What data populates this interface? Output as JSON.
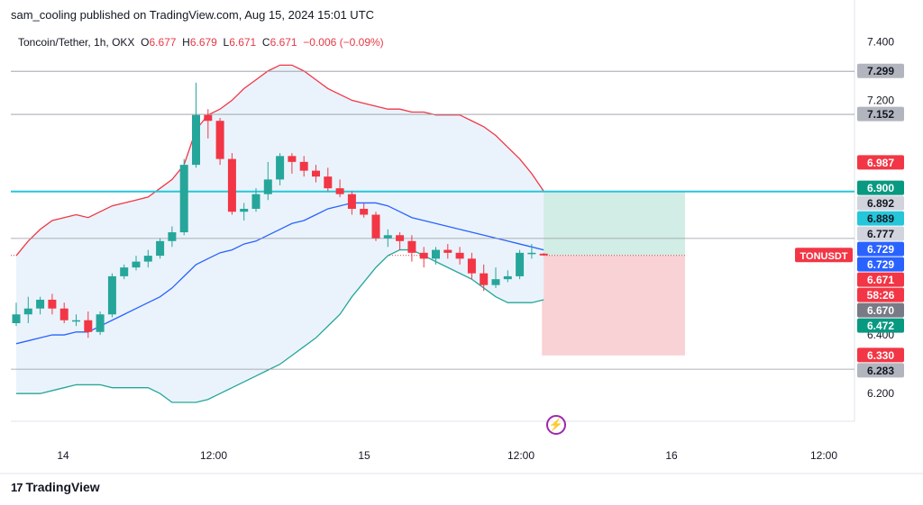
{
  "header": {
    "published_by": "sam_cooling published on TradingView.com, Aug 15, 2024 15:01 UTC"
  },
  "legend": {
    "symbol": "Toncoin/Tether, 1h, OKX",
    "o_label": "O",
    "o": "6.677",
    "h_label": "H",
    "h": "6.679",
    "l_label": "L",
    "l": "6.671",
    "c_label": "C",
    "c": "6.671",
    "change": "−0.006 (−0.09%)"
  },
  "brand": {
    "name": "TradingView",
    "logo": "17"
  },
  "colors": {
    "up": "#26a69a",
    "down": "#f23645",
    "upper_band": "#f23645",
    "lower_band": "#26a69a",
    "basis": "#2962ff",
    "hline": "#26c6da",
    "target_zone": "#d1ede5",
    "stop_zone": "#f9d2d5",
    "band_fill": "#eaf3fb"
  },
  "chart_data": {
    "type": "candlestick",
    "symbol": "TONUSDT",
    "timeframe": "1h",
    "ylim": [
      6.13,
      7.45
    ],
    "y_ticks": [
      "7.400",
      "7.200",
      "6.400",
      "6.200"
    ],
    "x_ticks": [
      "14",
      "12:00",
      "15",
      "12:00",
      "16",
      "12:00"
    ],
    "candles": [
      {
        "o": 6.44,
        "h": 6.51,
        "l": 6.43,
        "c": 6.47
      },
      {
        "o": 6.47,
        "h": 6.53,
        "l": 6.44,
        "c": 6.49
      },
      {
        "o": 6.49,
        "h": 6.53,
        "l": 6.47,
        "c": 6.52
      },
      {
        "o": 6.52,
        "h": 6.54,
        "l": 6.47,
        "c": 6.49
      },
      {
        "o": 6.49,
        "h": 6.51,
        "l": 6.44,
        "c": 6.45
      },
      {
        "o": 6.45,
        "h": 6.47,
        "l": 6.43,
        "c": 6.45
      },
      {
        "o": 6.45,
        "h": 6.48,
        "l": 6.39,
        "c": 6.41
      },
      {
        "o": 6.41,
        "h": 6.48,
        "l": 6.4,
        "c": 6.47
      },
      {
        "o": 6.47,
        "h": 6.61,
        "l": 6.46,
        "c": 6.6
      },
      {
        "o": 6.6,
        "h": 6.64,
        "l": 6.59,
        "c": 6.63
      },
      {
        "o": 6.63,
        "h": 6.67,
        "l": 6.62,
        "c": 6.65
      },
      {
        "o": 6.65,
        "h": 6.69,
        "l": 6.63,
        "c": 6.67
      },
      {
        "o": 6.67,
        "h": 6.73,
        "l": 6.66,
        "c": 6.72
      },
      {
        "o": 6.72,
        "h": 6.77,
        "l": 6.7,
        "c": 6.75
      },
      {
        "o": 6.75,
        "h": 7.0,
        "l": 6.74,
        "c": 6.98
      },
      {
        "o": 6.98,
        "h": 7.26,
        "l": 6.97,
        "c": 7.15
      },
      {
        "o": 7.15,
        "h": 7.17,
        "l": 7.07,
        "c": 7.13
      },
      {
        "o": 7.13,
        "h": 7.14,
        "l": 6.98,
        "c": 7.0
      },
      {
        "o": 7.0,
        "h": 7.02,
        "l": 6.81,
        "c": 6.82
      },
      {
        "o": 6.82,
        "h": 6.85,
        "l": 6.79,
        "c": 6.83
      },
      {
        "o": 6.83,
        "h": 6.9,
        "l": 6.82,
        "c": 6.88
      },
      {
        "o": 6.88,
        "h": 6.99,
        "l": 6.86,
        "c": 6.93
      },
      {
        "o": 6.93,
        "h": 7.02,
        "l": 6.91,
        "c": 7.01
      },
      {
        "o": 7.01,
        "h": 7.02,
        "l": 6.95,
        "c": 6.99
      },
      {
        "o": 6.99,
        "h": 7.01,
        "l": 6.94,
        "c": 6.96
      },
      {
        "o": 6.96,
        "h": 6.98,
        "l": 6.92,
        "c": 6.94
      },
      {
        "o": 6.94,
        "h": 6.97,
        "l": 6.89,
        "c": 6.9
      },
      {
        "o": 6.9,
        "h": 6.93,
        "l": 6.87,
        "c": 6.88
      },
      {
        "o": 6.88,
        "h": 6.89,
        "l": 6.81,
        "c": 6.83
      },
      {
        "o": 6.83,
        "h": 6.85,
        "l": 6.8,
        "c": 6.81
      },
      {
        "o": 6.81,
        "h": 6.82,
        "l": 6.72,
        "c": 6.73
      },
      {
        "o": 6.73,
        "h": 6.76,
        "l": 6.7,
        "c": 6.74
      },
      {
        "o": 6.74,
        "h": 6.75,
        "l": 6.69,
        "c": 6.72
      },
      {
        "o": 6.72,
        "h": 6.74,
        "l": 6.65,
        "c": 6.68
      },
      {
        "o": 6.68,
        "h": 6.7,
        "l": 6.63,
        "c": 6.66
      },
      {
        "o": 6.66,
        "h": 6.7,
        "l": 6.64,
        "c": 6.69
      },
      {
        "o": 6.69,
        "h": 6.71,
        "l": 6.66,
        "c": 6.68
      },
      {
        "o": 6.68,
        "h": 6.7,
        "l": 6.64,
        "c": 6.66
      },
      {
        "o": 6.66,
        "h": 6.68,
        "l": 6.59,
        "c": 6.61
      },
      {
        "o": 6.61,
        "h": 6.64,
        "l": 6.55,
        "c": 6.57
      },
      {
        "o": 6.57,
        "h": 6.63,
        "l": 6.56,
        "c": 6.59
      },
      {
        "o": 6.59,
        "h": 6.62,
        "l": 6.58,
        "c": 6.6
      },
      {
        "o": 6.6,
        "h": 6.69,
        "l": 6.59,
        "c": 6.68
      },
      {
        "o": 6.68,
        "h": 6.71,
        "l": 6.66,
        "c": 6.68
      },
      {
        "o": 6.677,
        "h": 6.679,
        "l": 6.671,
        "c": 6.671
      }
    ],
    "bollinger": {
      "upper": [
        6.67,
        6.72,
        6.76,
        6.79,
        6.8,
        6.81,
        6.8,
        6.82,
        6.84,
        6.85,
        6.86,
        6.87,
        6.9,
        6.93,
        6.98,
        7.1,
        7.15,
        7.17,
        7.2,
        7.24,
        7.27,
        7.3,
        7.32,
        7.32,
        7.3,
        7.27,
        7.24,
        7.22,
        7.2,
        7.19,
        7.18,
        7.17,
        7.17,
        7.16,
        7.16,
        7.15,
        7.15,
        7.15,
        7.13,
        7.11,
        7.08,
        7.04,
        7.0,
        6.95,
        6.89
      ],
      "basis": [
        6.37,
        6.38,
        6.39,
        6.4,
        6.4,
        6.41,
        6.41,
        6.43,
        6.45,
        6.47,
        6.49,
        6.51,
        6.53,
        6.56,
        6.6,
        6.64,
        6.66,
        6.68,
        6.69,
        6.71,
        6.72,
        6.74,
        6.76,
        6.78,
        6.79,
        6.81,
        6.83,
        6.84,
        6.85,
        6.85,
        6.85,
        6.84,
        6.82,
        6.8,
        6.79,
        6.78,
        6.77,
        6.76,
        6.75,
        6.74,
        6.73,
        6.72,
        6.71,
        6.7,
        6.69
      ],
      "lower": [
        6.2,
        6.2,
        6.2,
        6.21,
        6.22,
        6.23,
        6.23,
        6.23,
        6.22,
        6.22,
        6.22,
        6.22,
        6.2,
        6.17,
        6.17,
        6.17,
        6.18,
        6.2,
        6.22,
        6.24,
        6.26,
        6.28,
        6.3,
        6.33,
        6.36,
        6.39,
        6.43,
        6.47,
        6.53,
        6.58,
        6.63,
        6.67,
        6.69,
        6.69,
        6.67,
        6.65,
        6.63,
        6.61,
        6.59,
        6.56,
        6.53,
        6.51,
        6.51,
        6.51,
        6.52
      ]
    },
    "hlines": [
      {
        "value": 7.299,
        "style": "gray"
      },
      {
        "value": 7.152,
        "style": "gray"
      },
      {
        "value": 6.889,
        "style": "cyan"
      },
      {
        "value": 6.729,
        "style": "gray"
      },
      {
        "value": 6.283,
        "style": "gray"
      }
    ],
    "position": {
      "entry": 6.671,
      "target": 6.889,
      "stop": 6.33
    },
    "price_labels": [
      {
        "text": "7.299",
        "value": 7.299,
        "bg": "#b2b5be",
        "fg": "#131722"
      },
      {
        "text": "7.152",
        "value": 7.152,
        "bg": "#b2b5be",
        "fg": "#131722"
      },
      {
        "text": "6.987",
        "value": 6.987,
        "bg": "#f23645",
        "fg": "#ffffff"
      },
      {
        "text": "6.900",
        "value": 6.9,
        "bg": "#089981",
        "fg": "#ffffff"
      },
      {
        "text": "6.892",
        "value": 6.892,
        "bg": "#d1d4dc",
        "fg": "#131722"
      },
      {
        "text": "6.889",
        "value": 6.889,
        "bg": "#26c6da",
        "fg": "#131722"
      },
      {
        "text": "6.777",
        "value": 6.777,
        "bg": "#d1d4dc",
        "fg": "#131722"
      },
      {
        "text": "6.729",
        "value": 6.729,
        "bg": "#2962ff",
        "fg": "#ffffff"
      },
      {
        "text": "6.729",
        "value": 6.729,
        "bg": "#2962ff",
        "fg": "#ffffff"
      },
      {
        "text": "6.671",
        "value": 6.671,
        "bg": "#f23645",
        "fg": "#ffffff"
      },
      {
        "text": "58:26",
        "value": 6.671,
        "bg": "#f23645",
        "fg": "#ffffff"
      },
      {
        "text": "6.670",
        "value": 6.67,
        "bg": "#787b86",
        "fg": "#ffffff"
      },
      {
        "text": "6.472",
        "value": 6.472,
        "bg": "#089981",
        "fg": "#ffffff"
      },
      {
        "text": "6.330",
        "value": 6.33,
        "bg": "#f23645",
        "fg": "#ffffff"
      },
      {
        "text": "6.283",
        "value": 6.283,
        "bg": "#b2b5be",
        "fg": "#131722"
      }
    ],
    "symbol_tag": "TONUSDT"
  }
}
